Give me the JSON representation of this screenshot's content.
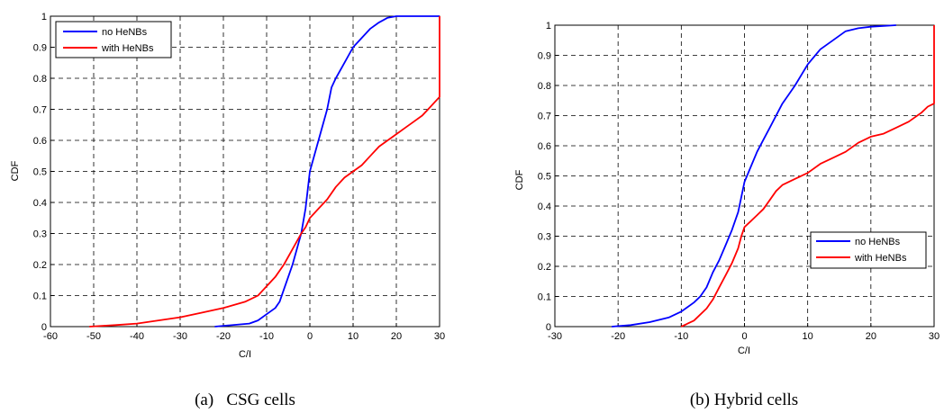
{
  "chart_data": [
    {
      "type": "line",
      "caption": "(a)   CSG cells",
      "xlabel": "C/I",
      "ylabel": "CDF",
      "xlim": [
        -60,
        30
      ],
      "ylim": [
        0,
        1
      ],
      "xticks": [
        "-60",
        "-50",
        "-40",
        "-30",
        "-20",
        "-10",
        "0",
        "10",
        "20",
        "30"
      ],
      "yticks": [
        "0",
        "0.1",
        "0.2",
        "0.3",
        "0.4",
        "0.5",
        "0.6",
        "0.7",
        "0.8",
        "0.9",
        "1"
      ],
      "grid": true,
      "legend_position": "top-left",
      "series": [
        {
          "name": "no HeNBs",
          "color": "#0000ff",
          "x": [
            -22,
            -14,
            -12,
            -10,
            -8,
            -7,
            -6,
            -5,
            -4,
            -3,
            -2,
            -1,
            0,
            1,
            2,
            3,
            4,
            5,
            6,
            8,
            10,
            12,
            14,
            16,
            18,
            20,
            30
          ],
          "y": [
            0,
            0.01,
            0.02,
            0.04,
            0.06,
            0.08,
            0.12,
            0.16,
            0.2,
            0.25,
            0.3,
            0.38,
            0.5,
            0.55,
            0.6,
            0.65,
            0.7,
            0.77,
            0.8,
            0.85,
            0.9,
            0.93,
            0.96,
            0.98,
            0.995,
            1.0,
            1.0
          ]
        },
        {
          "name": "with HeNBs",
          "color": "#ff0000",
          "x": [
            -51,
            -45,
            -40,
            -35,
            -30,
            -25,
            -20,
            -15,
            -12,
            -10,
            -8,
            -6,
            -4,
            -2,
            -1,
            0,
            2,
            4,
            6,
            8,
            10,
            12,
            14,
            16,
            18,
            20,
            22,
            24,
            26,
            28,
            30,
            30
          ],
          "y": [
            0,
            0.005,
            0.01,
            0.02,
            0.03,
            0.045,
            0.06,
            0.08,
            0.1,
            0.13,
            0.16,
            0.2,
            0.25,
            0.3,
            0.32,
            0.35,
            0.38,
            0.41,
            0.45,
            0.48,
            0.5,
            0.52,
            0.55,
            0.58,
            0.6,
            0.62,
            0.64,
            0.66,
            0.68,
            0.71,
            0.74,
            1.0
          ]
        }
      ]
    },
    {
      "type": "line",
      "caption": "(b) Hybrid cells",
      "xlabel": "C/I",
      "ylabel": "CDF",
      "xlim": [
        -30,
        30
      ],
      "ylim": [
        0,
        1
      ],
      "xticks": [
        "-30",
        "-20",
        "-10",
        "0",
        "10",
        "20",
        "30"
      ],
      "yticks": [
        "0",
        "0.1",
        "0.2",
        "0.3",
        "0.4",
        "0.5",
        "0.6",
        "0.7",
        "0.8",
        "0.9",
        "1"
      ],
      "grid": true,
      "legend_position": "bottom-right",
      "series": [
        {
          "name": "no HeNBs",
          "color": "#0000ff",
          "x": [
            -21,
            -18,
            -15,
            -12,
            -10,
            -8,
            -7,
            -6,
            -5,
            -4,
            -3,
            -2,
            -1,
            0,
            1,
            2,
            3,
            4,
            5,
            6,
            7,
            8,
            10,
            12,
            14,
            16,
            18,
            20,
            24
          ],
          "y": [
            0,
            0.005,
            0.015,
            0.03,
            0.05,
            0.08,
            0.1,
            0.13,
            0.18,
            0.22,
            0.27,
            0.32,
            0.38,
            0.48,
            0.53,
            0.58,
            0.62,
            0.66,
            0.7,
            0.74,
            0.77,
            0.8,
            0.87,
            0.92,
            0.95,
            0.98,
            0.99,
            0.995,
            1.0
          ]
        },
        {
          "name": "with HeNBs",
          "color": "#ff0000",
          "x": [
            -10,
            -8,
            -6,
            -5,
            -4,
            -3,
            -2,
            -1,
            -0.5,
            0,
            1,
            2,
            3,
            4,
            5,
            6,
            8,
            10,
            12,
            14,
            16,
            18,
            20,
            22,
            24,
            26,
            28,
            29,
            30,
            30
          ],
          "y": [
            0,
            0.02,
            0.06,
            0.09,
            0.13,
            0.17,
            0.21,
            0.26,
            0.3,
            0.33,
            0.35,
            0.37,
            0.39,
            0.42,
            0.45,
            0.47,
            0.49,
            0.51,
            0.54,
            0.56,
            0.58,
            0.61,
            0.63,
            0.64,
            0.66,
            0.68,
            0.71,
            0.73,
            0.74,
            1.0
          ]
        }
      ]
    }
  ]
}
